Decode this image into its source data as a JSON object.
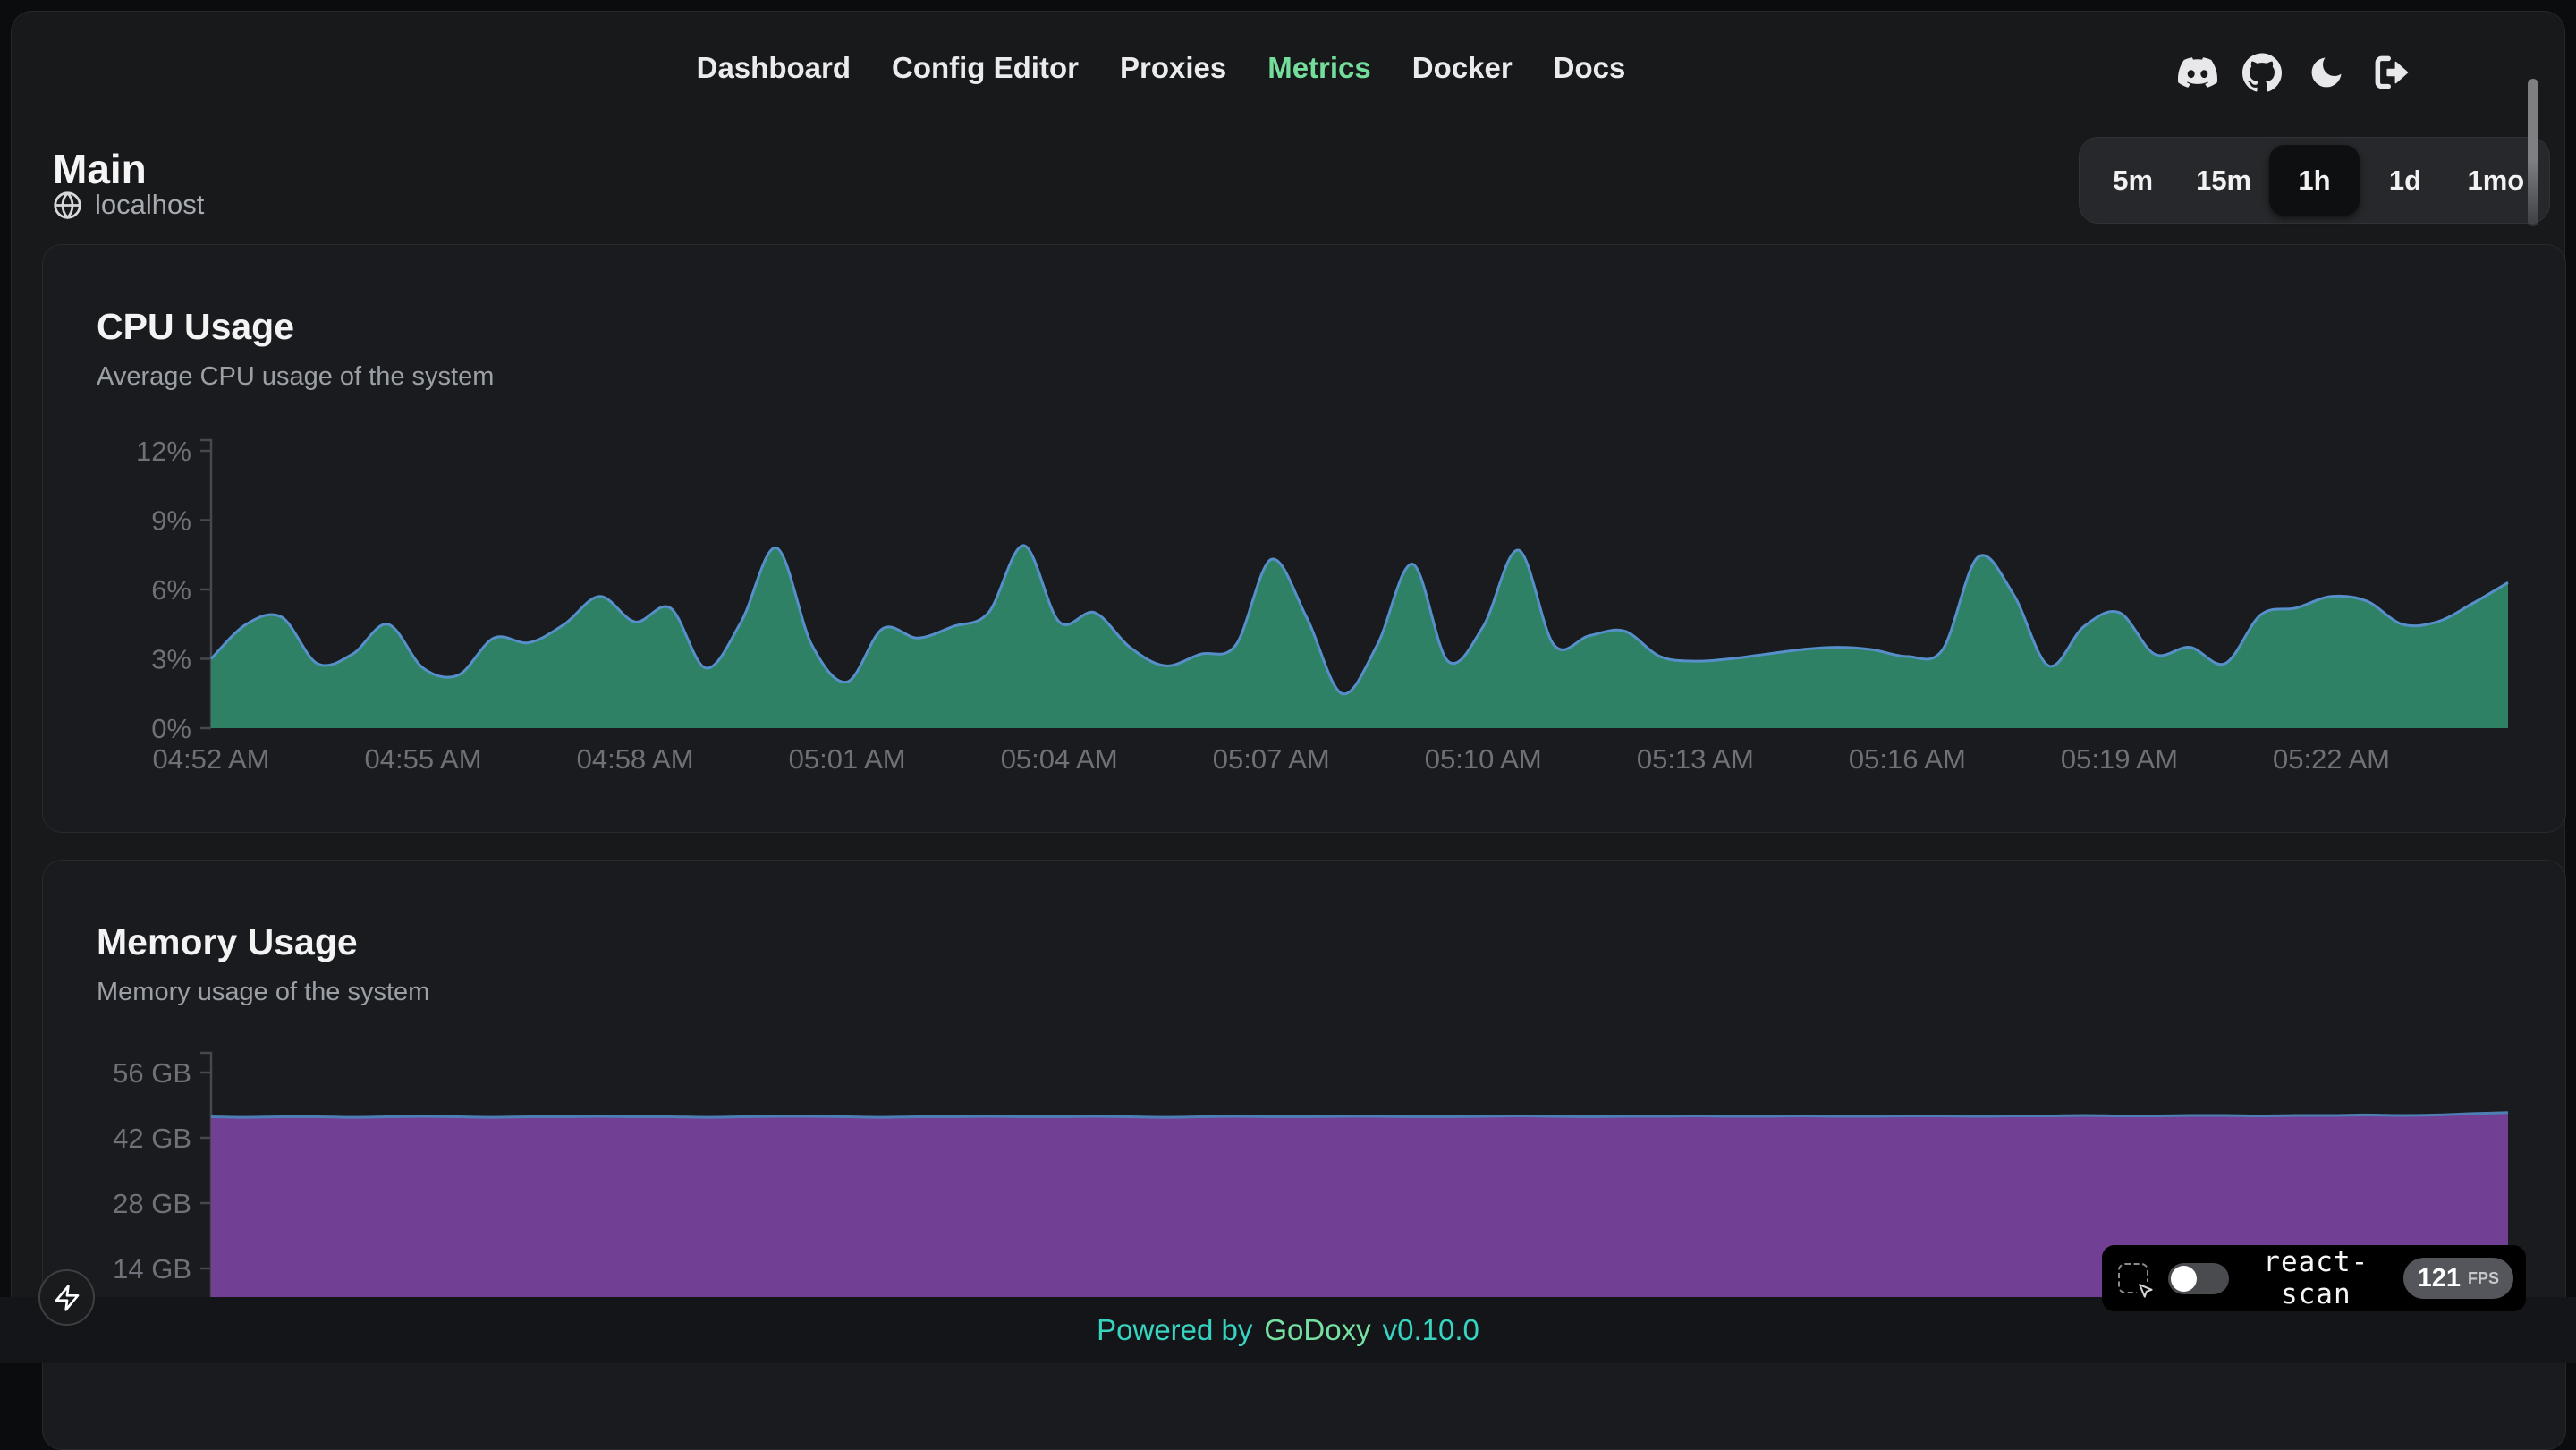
{
  "nav": {
    "items": [
      {
        "label": "Dashboard",
        "active": false
      },
      {
        "label": "Config Editor",
        "active": false
      },
      {
        "label": "Proxies",
        "active": false
      },
      {
        "label": "Metrics",
        "active": true
      },
      {
        "label": "Docker",
        "active": false
      },
      {
        "label": "Docs",
        "active": false
      }
    ],
    "icons": [
      "discord",
      "github",
      "theme-moon",
      "logout"
    ]
  },
  "header": {
    "title": "Main",
    "host": "localhost"
  },
  "time_range": {
    "options": [
      "5m",
      "15m",
      "1h",
      "1d",
      "1mo"
    ],
    "selected": "1h"
  },
  "chart_data": [
    {
      "type": "area",
      "title": "CPU Usage",
      "subtitle": "Average CPU usage of the system",
      "ylim": [
        0,
        12
      ],
      "yticks": [
        0,
        3,
        6,
        9,
        12
      ],
      "ytick_labels": [
        "0%",
        "3%",
        "6%",
        "9%",
        "12%"
      ],
      "x_minutes_range": [
        0,
        32.5
      ],
      "xtick_minutes": [
        0,
        3,
        6,
        9,
        12,
        15,
        18,
        21,
        24,
        27,
        30
      ],
      "xtick_labels": [
        "04:52 AM",
        "04:55 AM",
        "04:58 AM",
        "05:01 AM",
        "05:04 AM",
        "05:07 AM",
        "05:10 AM",
        "05:13 AM",
        "05:16 AM",
        "05:19 AM",
        "05:22 AM"
      ],
      "sample_step_minutes": 0.5,
      "grid": false,
      "legend": false,
      "fill_color": "#2e8165",
      "line_color": "#568fc9",
      "series": [
        {
          "name": "cpu_usage_percent",
          "unit": "%",
          "values": [
            3.0,
            4.5,
            4.8,
            2.8,
            3.2,
            4.5,
            2.6,
            2.3,
            3.9,
            3.7,
            4.5,
            5.7,
            4.6,
            5.2,
            2.6,
            4.6,
            7.8,
            3.6,
            2.0,
            4.3,
            3.9,
            4.4,
            5.0,
            7.9,
            4.6,
            5.0,
            3.5,
            2.7,
            3.2,
            3.6,
            7.3,
            4.8,
            1.5,
            3.6,
            7.1,
            2.9,
            4.4,
            7.7,
            3.6,
            4.0,
            4.2,
            3.1,
            2.9,
            3.0,
            3.2,
            3.4,
            3.5,
            3.4,
            3.1,
            3.4,
            7.4,
            5.8,
            2.7,
            4.4,
            5.0,
            3.2,
            3.5,
            2.8,
            4.9,
            5.2,
            5.7,
            5.5,
            4.5,
            4.6,
            5.4,
            6.3
          ]
        }
      ]
    },
    {
      "type": "area",
      "title": "Memory Usage",
      "subtitle": "Memory usage of the system",
      "ylim": [
        0,
        56
      ],
      "yticks": [
        14,
        28,
        42,
        56
      ],
      "ytick_labels": [
        "14 GB",
        "28 GB",
        "42 GB",
        "56 GB"
      ],
      "x_minutes_range": [
        0,
        32.5
      ],
      "xtick_minutes": [],
      "xtick_labels": [],
      "sample_step_minutes": 0.5,
      "grid": false,
      "legend": false,
      "fill_color": "#713f93",
      "line_color": "#4d7fb5",
      "series": [
        {
          "name": "memory_usage_gb",
          "unit": "GB",
          "values": [
            46.5,
            46.4,
            46.5,
            46.5,
            46.4,
            46.5,
            46.6,
            46.5,
            46.4,
            46.5,
            46.5,
            46.6,
            46.5,
            46.5,
            46.4,
            46.5,
            46.6,
            46.6,
            46.5,
            46.4,
            46.5,
            46.5,
            46.6,
            46.5,
            46.5,
            46.6,
            46.5,
            46.4,
            46.5,
            46.6,
            46.5,
            46.5,
            46.6,
            46.6,
            46.5,
            46.5,
            46.6,
            46.7,
            46.6,
            46.5,
            46.6,
            46.6,
            46.7,
            46.6,
            46.6,
            46.7,
            46.6,
            46.6,
            46.7,
            46.7,
            46.6,
            46.7,
            46.7,
            46.8,
            46.7,
            46.7,
            46.8,
            46.8,
            46.7,
            46.8,
            46.8,
            46.9,
            46.8,
            46.9,
            47.2,
            47.4
          ]
        }
      ]
    }
  ],
  "footer": {
    "powered_by": "Powered by",
    "brand": "GoDoxy",
    "version": "v0.10.0"
  },
  "react_scan": {
    "label": "react-scan",
    "fps": "121",
    "fps_unit": "FPS",
    "toggle_state": "off"
  },
  "colors": {
    "accent_green": "#74dd9b",
    "footer_teal": "#36d4c1",
    "footer_brand": "#76e0a2",
    "cpu_fill": "#2e8165",
    "cpu_line": "#568fc9",
    "memory_fill": "#713f93",
    "memory_line": "#4d7fb5"
  }
}
